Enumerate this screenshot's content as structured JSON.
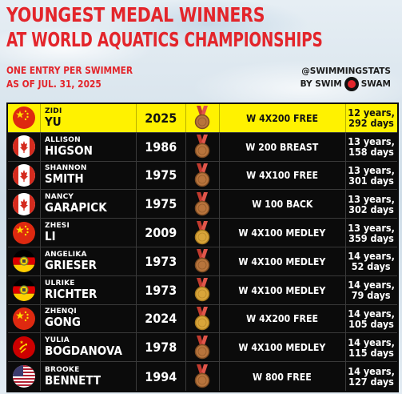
{
  "title": {
    "line1": "YOUNGEST MEDAL WINNERS",
    "line2": "AT WORLD AQUATICS CHAMPIONSHIPS"
  },
  "subtitle": {
    "line1": "ONE ENTRY PER SWIMMER",
    "line2": "AS OF JUL. 31, 2025"
  },
  "credit": {
    "handle": "@SWIMMINGSTATS",
    "by": "BY SWIM",
    "swam": "SWAM"
  },
  "colors": {
    "title_red": "#e3252b",
    "highlight_yellow": "#fff200",
    "table_bg": "#0b0b0b",
    "bronze": "#b8743c",
    "gold": "#d9a53a"
  },
  "rows": [
    {
      "first": "ZIDI",
      "last": "YU",
      "year": "2025",
      "medal": "bronze",
      "event": "W 4X200 FREE",
      "age_years": "12 years,",
      "age_days": "292 days",
      "flag": "china",
      "highlight": true
    },
    {
      "first": "ALLISON",
      "last": "HIGSON",
      "year": "1986",
      "medal": "bronze",
      "event": "W 200 BREAST",
      "age_years": "13 years,",
      "age_days": "158 days",
      "flag": "canada",
      "highlight": false
    },
    {
      "first": "SHANNON",
      "last": "SMITH",
      "year": "1975",
      "medal": "bronze",
      "event": "W 4X100 FREE",
      "age_years": "13 years,",
      "age_days": "301 days",
      "flag": "canada",
      "highlight": false
    },
    {
      "first": "NANCY",
      "last": "GARAPICK",
      "year": "1975",
      "medal": "bronze",
      "event": "W 100 BACK",
      "age_years": "13 years,",
      "age_days": "302 days",
      "flag": "canada",
      "highlight": false
    },
    {
      "first": "ZHESI",
      "last": "LI",
      "year": "2009",
      "medal": "gold",
      "event": "W 4X100 MEDLEY",
      "age_years": "13 years,",
      "age_days": "359 days",
      "flag": "china",
      "highlight": false
    },
    {
      "first": "ANGELIKA",
      "last": "GRIESER",
      "year": "1973",
      "medal": "bronze",
      "event": "W 4X100 MEDLEY",
      "age_years": "14 years,",
      "age_days": "52 days",
      "flag": "east-germany",
      "highlight": false
    },
    {
      "first": "ULRIKE",
      "last": "RICHTER",
      "year": "1973",
      "medal": "gold",
      "event": "W 4X100 MEDLEY",
      "age_years": "14 years,",
      "age_days": "79 days",
      "flag": "east-germany",
      "highlight": false
    },
    {
      "first": "ZHENQI",
      "last": "GONG",
      "year": "2024",
      "medal": "gold",
      "event": "W 4X200 FREE",
      "age_years": "14 years,",
      "age_days": "105 days",
      "flag": "china",
      "highlight": false
    },
    {
      "first": "YULIA",
      "last": "BOGDANOVA",
      "year": "1978",
      "medal": "bronze",
      "event": "W 4X100 MEDLEY",
      "age_years": "14 years,",
      "age_days": "115 days",
      "flag": "ussr",
      "highlight": false
    },
    {
      "first": "BROOKE",
      "last": "BENNETT",
      "year": "1994",
      "medal": "bronze",
      "event": "W 800 FREE",
      "age_years": "14 years,",
      "age_days": "127 days",
      "flag": "usa",
      "highlight": false
    }
  ]
}
